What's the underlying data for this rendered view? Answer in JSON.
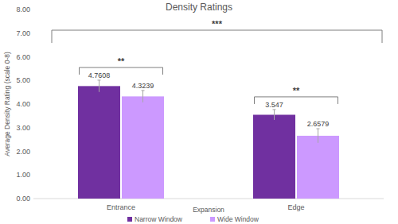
{
  "chart_data": {
    "type": "bar",
    "title": "Density Ratings",
    "x_label": "Expansion",
    "y_label": "Average Density Rating (scale 0-8)",
    "categories": [
      "Entrance",
      "Edge"
    ],
    "series": [
      {
        "name": "Narrow Window",
        "color": "#7030a0",
        "values": [
          4.7608,
          3.547
        ],
        "errors": [
          0.25,
          0.22
        ]
      },
      {
        "name": "Wide Window",
        "color": "#cc99ff",
        "values": [
          4.3239,
          2.6579
        ],
        "errors": [
          0.25,
          0.3
        ]
      }
    ],
    "ylim": [
      0,
      8
    ],
    "yticks": [
      {
        "value": 0,
        "label": "0.00"
      },
      {
        "value": 1,
        "label": "1.00"
      },
      {
        "value": 2,
        "label": "2.00"
      },
      {
        "value": 3,
        "label": "3.00"
      },
      {
        "value": 4,
        "label": "4.00"
      },
      {
        "value": 5,
        "label": "5.00"
      },
      {
        "value": 6,
        "label": "6.00"
      },
      {
        "value": 7,
        "label": "7.00"
      },
      {
        "value": 8,
        "label": "8.00"
      }
    ],
    "grid": false,
    "legend": "bottom",
    "data_labels": true,
    "annotations": [
      "**",
      "**",
      "***"
    ]
  }
}
